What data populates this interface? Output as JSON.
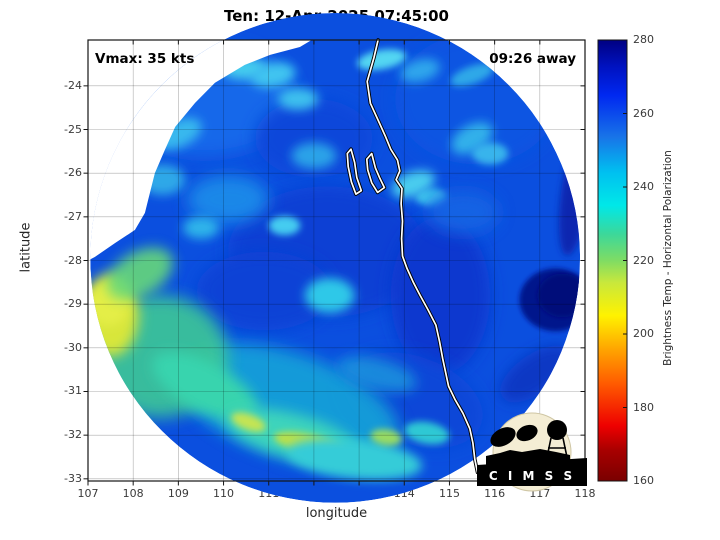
{
  "title": "Ten: 12-Apr-2025 07:45:00",
  "annotations": {
    "vmax": "Vmax: 35 kts",
    "eta": "09:26 away"
  },
  "axes": {
    "xlabel": "longitude",
    "ylabel": "latitude",
    "xticks": [
      107,
      108,
      109,
      110,
      111,
      112,
      113,
      114,
      115,
      116,
      117,
      118
    ],
    "yticks": [
      -24,
      -25,
      -26,
      -27,
      -28,
      -29,
      -30,
      -31,
      -32,
      -33
    ],
    "xlim": [
      107,
      118
    ],
    "ylim_top": -22.95,
    "ylim_bottom": -33.05
  },
  "colorbar": {
    "label": "Brightness Temp - Horizontal Polarization",
    "ticks": [
      160,
      180,
      200,
      220,
      240,
      260,
      280
    ],
    "min": 160,
    "max": 280,
    "stops": [
      {
        "p": 0.0,
        "c": "#7a0000"
      },
      {
        "p": 0.07,
        "c": "#a80000"
      },
      {
        "p": 0.125,
        "c": "#ee0000"
      },
      {
        "p": 0.22,
        "c": "#ff5a00"
      },
      {
        "p": 0.3,
        "c": "#ffa600"
      },
      {
        "p": 0.375,
        "c": "#fff200"
      },
      {
        "p": 0.45,
        "c": "#c8e83c"
      },
      {
        "p": 0.5,
        "c": "#7fdc64"
      },
      {
        "p": 0.56,
        "c": "#3cd89a"
      },
      {
        "p": 0.625,
        "c": "#00e8e8"
      },
      {
        "p": 0.7,
        "c": "#00c0f0"
      },
      {
        "p": 0.78,
        "c": "#1874e8"
      },
      {
        "p": 0.875,
        "c": "#0028f0"
      },
      {
        "p": 0.94,
        "c": "#0012c0"
      },
      {
        "p": 1.0,
        "c": "#000082"
      }
    ]
  },
  "logo": {
    "text": "C I M S S",
    "circle_color": "#f4edd4",
    "ink": "#000000"
  },
  "chart_data": {
    "type": "heatmap",
    "title": "Ten: 12-Apr-2025 07:45:00",
    "xlabel": "longitude",
    "ylabel": "latitude",
    "xlim": [
      107,
      118
    ],
    "ylim": [
      -33.05,
      -22.95
    ],
    "colorbar_label": "Brightness Temp - Horizontal Polarization",
    "colorbar_range": [
      160,
      280
    ],
    "grid": true,
    "swath": {
      "center_lon": 112.47,
      "center_lat": -27.94,
      "rx_deg": 5.42,
      "ry_deg": 4.83,
      "base_color": "#0b4fdf"
    },
    "feature_format": "[lon, lat, rx_deg, ry_deg, rot_deg, color, opacity, blur_px]",
    "features": [
      [
        109.6,
        -24.3,
        2.0,
        1.3,
        0,
        "#1567ea",
        1,
        8
      ],
      [
        115.6,
        -24.3,
        1.8,
        1.5,
        0,
        "#0d55e2",
        1,
        8
      ],
      [
        112.0,
        -25.2,
        1.3,
        0.9,
        0,
        "#0b47da",
        1,
        8
      ],
      [
        112.3,
        -27.8,
        2.2,
        1.5,
        0,
        "#0a3fd4",
        1,
        8
      ],
      [
        114.8,
        -28.8,
        1.1,
        1.8,
        0,
        "#0939cf",
        1,
        7
      ],
      [
        110.9,
        -28.7,
        1.5,
        0.9,
        0,
        "#0a42d6",
        1,
        7
      ],
      [
        114.2,
        -31.2,
        1.6,
        1.0,
        20,
        "#0846d8",
        1,
        7
      ],
      [
        111.4,
        -31.3,
        2.6,
        1.2,
        18,
        "#18a8d8",
        0.85,
        8
      ],
      [
        108.6,
        -30.2,
        1.5,
        1.4,
        0,
        "#3cc896",
        0.9,
        8
      ],
      [
        107.5,
        -29.25,
        0.62,
        0.95,
        0,
        "#d8e63a",
        1,
        5
      ],
      [
        107.45,
        -29.0,
        0.45,
        0.5,
        0,
        "#e4ee46",
        1,
        4
      ],
      [
        108.15,
        -28.3,
        0.8,
        0.5,
        -30,
        "#66d87a",
        0.9,
        5
      ],
      [
        109.6,
        -30.9,
        1.3,
        0.55,
        28,
        "#38d4ae",
        1,
        5
      ],
      [
        111.5,
        -32.0,
        1.5,
        0.5,
        14,
        "#3ed4bc",
        1,
        5
      ],
      [
        111.9,
        -32.2,
        0.8,
        0.22,
        12,
        "#bce048",
        1,
        3
      ],
      [
        110.55,
        -31.7,
        0.4,
        0.18,
        20,
        "#c4e452",
        1,
        3
      ],
      [
        112.9,
        -32.55,
        1.5,
        0.45,
        6,
        "#34ccd8",
        1,
        4
      ],
      [
        113.6,
        -32.05,
        0.35,
        0.18,
        8,
        "#9adc62",
        1,
        3
      ],
      [
        114.5,
        -31.95,
        0.5,
        0.25,
        10,
        "#2ec8d4",
        1,
        3
      ],
      [
        113.4,
        -30.6,
        0.9,
        0.35,
        15,
        "#1f9ade",
        0.8,
        5
      ],
      [
        112.35,
        -28.8,
        0.55,
        0.4,
        0,
        "#2ec8e8",
        1,
        4
      ],
      [
        110.1,
        -26.6,
        0.9,
        0.55,
        0,
        "#1f8eea",
        0.9,
        6
      ],
      [
        110.45,
        -23.6,
        0.5,
        0.25,
        0,
        "#44ccee",
        1,
        4
      ],
      [
        111.1,
        -23.75,
        0.5,
        0.28,
        -10,
        "#3fc4f0",
        1,
        4
      ],
      [
        111.65,
        -24.3,
        0.45,
        0.25,
        0,
        "#3cc0ee",
        1,
        4
      ],
      [
        113.5,
        -23.4,
        0.55,
        0.22,
        -10,
        "#52d6f2",
        1,
        3
      ],
      [
        114.35,
        -23.65,
        0.45,
        0.25,
        -15,
        "#2ea6ec",
        1,
        4
      ],
      [
        115.5,
        -23.75,
        0.5,
        0.2,
        -20,
        "#2fa8e8",
        1,
        3
      ],
      [
        116.6,
        -23.25,
        0.4,
        0.2,
        -15,
        "#38b8ee",
        1,
        3
      ],
      [
        109.0,
        -25.1,
        0.55,
        0.3,
        -25,
        "#38b8ee",
        1,
        4
      ],
      [
        108.65,
        -26.15,
        0.5,
        0.35,
        0,
        "#2fa8e8",
        1,
        4
      ],
      [
        109.5,
        -27.25,
        0.4,
        0.25,
        0,
        "#2fb4ea",
        1,
        4
      ],
      [
        111.35,
        -27.2,
        0.35,
        0.22,
        0,
        "#44ccf0",
        1,
        3
      ],
      [
        112.0,
        -25.6,
        0.5,
        0.3,
        0,
        "#2aa2e8",
        1,
        4
      ],
      [
        114.2,
        -26.25,
        0.5,
        0.28,
        -20,
        "#48ccee",
        1,
        4
      ],
      [
        114.6,
        -26.55,
        0.35,
        0.2,
        0,
        "#40c4ec",
        1,
        3
      ],
      [
        115.5,
        -25.2,
        0.5,
        0.3,
        -30,
        "#30b0ea",
        1,
        4
      ],
      [
        115.9,
        -25.55,
        0.4,
        0.25,
        0,
        "#38b4ec",
        1,
        3
      ],
      [
        115.3,
        -26.9,
        0.8,
        0.5,
        0,
        "#1565e4",
        0.9,
        6
      ],
      [
        116.9,
        -30.6,
        0.9,
        0.45,
        -35,
        "#0a38c4",
        1,
        5
      ],
      [
        117.8,
        -26.4,
        0.32,
        1.5,
        8,
        "#0a28b0",
        1,
        3
      ],
      [
        117.35,
        -28.9,
        0.8,
        0.72,
        0,
        "#04128c",
        1,
        2
      ],
      [
        117.5,
        -28.8,
        0.55,
        0.5,
        0,
        "#030e7a",
        1,
        2
      ]
    ],
    "no_data_wedge": [
      [
        111.95,
        -22.95
      ],
      [
        111.69,
        -23.11
      ],
      [
        111.03,
        -23.29
      ],
      [
        110.47,
        -23.52
      ],
      [
        109.81,
        -23.93
      ],
      [
        109.37,
        -24.39
      ],
      [
        108.93,
        -24.94
      ],
      [
        108.7,
        -25.47
      ],
      [
        108.48,
        -26.0
      ],
      [
        108.37,
        -26.45
      ],
      [
        108.26,
        -26.91
      ],
      [
        108.04,
        -27.3
      ],
      [
        107.6,
        -27.6
      ],
      [
        107.15,
        -27.92
      ],
      [
        107.0,
        -28.0
      ],
      [
        107.0,
        -22.95
      ]
    ],
    "coastline": [
      [
        113.42,
        -22.95
      ],
      [
        113.33,
        -23.35
      ],
      [
        113.18,
        -23.9
      ],
      [
        113.25,
        -24.4
      ],
      [
        113.45,
        -24.85
      ],
      [
        113.58,
        -25.15
      ],
      [
        113.7,
        -25.45
      ],
      [
        113.85,
        -25.7
      ],
      [
        113.9,
        -25.95
      ],
      [
        113.82,
        -26.15
      ],
      [
        113.95,
        -26.35
      ],
      [
        113.93,
        -26.7
      ],
      [
        113.96,
        -27.1
      ],
      [
        113.94,
        -27.5
      ],
      [
        113.96,
        -27.9
      ],
      [
        114.06,
        -28.18
      ],
      [
        114.2,
        -28.5
      ],
      [
        114.35,
        -28.8
      ],
      [
        114.52,
        -29.12
      ],
      [
        114.7,
        -29.48
      ],
      [
        114.78,
        -29.85
      ],
      [
        114.85,
        -30.25
      ],
      [
        114.92,
        -30.58
      ],
      [
        114.98,
        -30.88
      ],
      [
        115.12,
        -31.18
      ],
      [
        115.3,
        -31.5
      ],
      [
        115.45,
        -31.85
      ],
      [
        115.52,
        -32.18
      ],
      [
        115.56,
        -32.55
      ],
      [
        115.62,
        -32.85
      ]
    ],
    "islands": [
      [
        [
          112.82,
          -25.45
        ],
        [
          112.9,
          -25.75
        ],
        [
          112.95,
          -26.1
        ],
        [
          113.05,
          -26.4
        ],
        [
          112.93,
          -26.48
        ],
        [
          112.83,
          -26.2
        ],
        [
          112.76,
          -25.85
        ],
        [
          112.74,
          -25.55
        ]
      ],
      [
        [
          113.28,
          -25.55
        ],
        [
          113.36,
          -25.88
        ],
        [
          113.46,
          -26.12
        ],
        [
          113.56,
          -26.33
        ],
        [
          113.41,
          -26.44
        ],
        [
          113.28,
          -26.22
        ],
        [
          113.19,
          -25.92
        ],
        [
          113.17,
          -25.68
        ]
      ]
    ]
  }
}
